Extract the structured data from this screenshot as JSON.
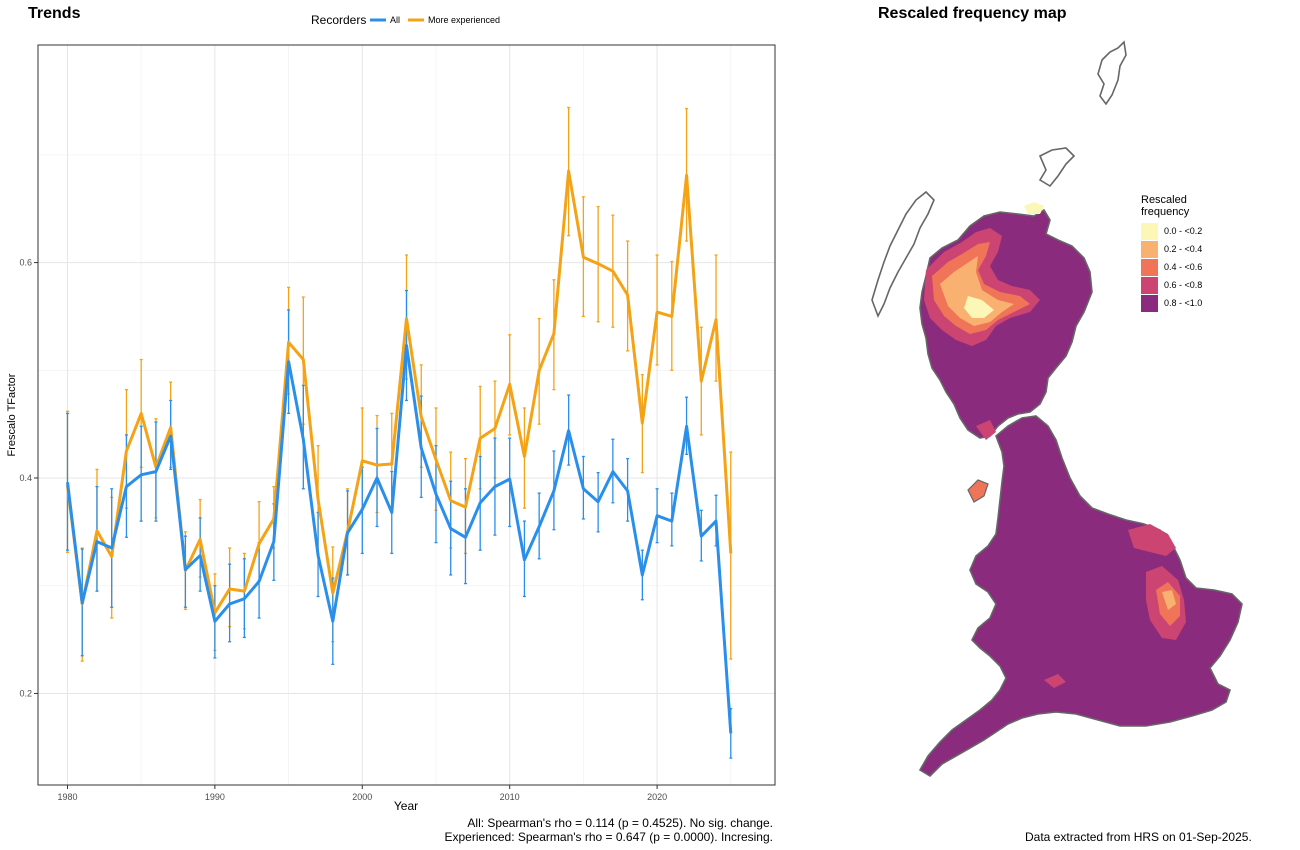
{
  "trends_title": "Trends",
  "map_title": "Rescaled frequency map",
  "footer": {
    "all": "All: Spearman's rho = 0.114 (p = 0.4525). No sig. change.",
    "experienced": "Experienced: Spearman's rho = 0.647 (p = 0.0000). Incresing.",
    "data_note": "Data extracted from HRS on 01-Sep-2025."
  },
  "chart_data": {
    "type": "line",
    "xlabel": "Year",
    "ylabel": "Frescalo TFactor",
    "xlim": [
      1978,
      2028
    ],
    "ylim": [
      0.115,
      0.802
    ],
    "x_ticks": [
      1980,
      1990,
      2000,
      2010,
      2020
    ],
    "y_ticks": [
      0.2,
      0.4,
      0.6
    ],
    "grid": true,
    "legend": {
      "title": "Recorders",
      "position": "top"
    },
    "x": [
      1980,
      1981,
      1982,
      1983,
      1984,
      1985,
      1986,
      1987,
      1988,
      1989,
      1990,
      1991,
      1992,
      1993,
      1994,
      1995,
      1996,
      1997,
      1998,
      1999,
      2000,
      2001,
      2002,
      2003,
      2004,
      2005,
      2006,
      2007,
      2008,
      2009,
      2010,
      2011,
      2012,
      2013,
      2014,
      2015,
      2016,
      2017,
      2018,
      2019,
      2020,
      2021,
      2022,
      2023,
      2024,
      2025
    ],
    "series": [
      {
        "name": "All",
        "color": "#2a8fea",
        "values": [
          0.396,
          0.284,
          0.341,
          0.335,
          0.392,
          0.403,
          0.406,
          0.439,
          0.315,
          0.328,
          0.267,
          0.283,
          0.288,
          0.304,
          0.341,
          0.508,
          0.436,
          0.328,
          0.267,
          0.349,
          0.371,
          0.4,
          0.368,
          0.523,
          0.428,
          0.385,
          0.353,
          0.345,
          0.377,
          0.392,
          0.399,
          0.324,
          0.355,
          0.388,
          0.444,
          0.39,
          0.378,
          0.406,
          0.388,
          0.31,
          0.365,
          0.36,
          0.448,
          0.346,
          0.36,
          0.163
        ],
        "lower": [
          0.333,
          0.235,
          0.295,
          0.28,
          0.345,
          0.36,
          0.36,
          0.408,
          0.28,
          0.295,
          0.233,
          0.248,
          0.252,
          0.27,
          0.305,
          0.46,
          0.39,
          0.29,
          0.227,
          0.31,
          0.33,
          0.355,
          0.33,
          0.472,
          0.382,
          0.34,
          0.31,
          0.302,
          0.333,
          0.347,
          0.355,
          0.29,
          0.325,
          0.352,
          0.412,
          0.362,
          0.35,
          0.377,
          0.36,
          0.287,
          0.34,
          0.337,
          0.422,
          0.323,
          0.337,
          0.14
        ],
        "upper": [
          0.46,
          0.334,
          0.392,
          0.39,
          0.44,
          0.448,
          0.452,
          0.472,
          0.346,
          0.363,
          0.3,
          0.32,
          0.325,
          0.34,
          0.376,
          0.556,
          0.486,
          0.368,
          0.307,
          0.388,
          0.41,
          0.446,
          0.406,
          0.574,
          0.476,
          0.43,
          0.397,
          0.39,
          0.42,
          0.437,
          0.437,
          0.36,
          0.386,
          0.425,
          0.477,
          0.42,
          0.405,
          0.436,
          0.418,
          0.333,
          0.39,
          0.386,
          0.475,
          0.37,
          0.384,
          0.186
        ]
      },
      {
        "name": "More experienced",
        "color": "#f5a316",
        "values": [
          0.393,
          0.283,
          0.351,
          0.327,
          0.425,
          0.46,
          0.41,
          0.447,
          0.314,
          0.343,
          0.275,
          0.297,
          0.295,
          0.339,
          0.362,
          0.526,
          0.51,
          0.38,
          0.293,
          0.35,
          0.416,
          0.412,
          0.413,
          0.548,
          0.457,
          0.417,
          0.379,
          0.373,
          0.437,
          0.446,
          0.487,
          0.42,
          0.5,
          0.534,
          0.685,
          0.605,
          0.599,
          0.592,
          0.57,
          0.451,
          0.554,
          0.55,
          0.681,
          0.49,
          0.547,
          0.33
        ],
        "lower": [
          0.331,
          0.23,
          0.295,
          0.27,
          0.372,
          0.41,
          0.363,
          0.41,
          0.278,
          0.308,
          0.24,
          0.262,
          0.26,
          0.305,
          0.335,
          0.478,
          0.45,
          0.33,
          0.248,
          0.31,
          0.372,
          0.368,
          0.37,
          0.492,
          0.41,
          0.37,
          0.335,
          0.33,
          0.39,
          0.4,
          0.44,
          0.372,
          0.45,
          0.482,
          0.625,
          0.55,
          0.545,
          0.54,
          0.518,
          0.405,
          0.505,
          0.5,
          0.62,
          0.44,
          0.49,
          0.232
        ],
        "upper": [
          0.462,
          0.335,
          0.408,
          0.382,
          0.482,
          0.51,
          0.455,
          0.489,
          0.35,
          0.38,
          0.311,
          0.335,
          0.33,
          0.378,
          0.392,
          0.577,
          0.568,
          0.43,
          0.336,
          0.39,
          0.465,
          0.458,
          0.46,
          0.607,
          0.505,
          0.465,
          0.424,
          0.418,
          0.485,
          0.49,
          0.533,
          0.465,
          0.548,
          0.584,
          0.744,
          0.661,
          0.652,
          0.644,
          0.62,
          0.496,
          0.607,
          0.601,
          0.743,
          0.54,
          0.607,
          0.424
        ]
      }
    ]
  },
  "map_legend": {
    "title_line1": "Rescaled",
    "title_line2": "frequency",
    "items": [
      {
        "label": "0.0 - <0.2",
        "color": "#fcf7b6"
      },
      {
        "label": "0.2 - <0.4",
        "color": "#f9b172"
      },
      {
        "label": "0.4 - <0.6",
        "color": "#f07457"
      },
      {
        "label": "0.6 - <0.8",
        "color": "#cc4471"
      },
      {
        "label": "0.8 - <1.0",
        "color": "#8b2b7e"
      }
    ]
  }
}
